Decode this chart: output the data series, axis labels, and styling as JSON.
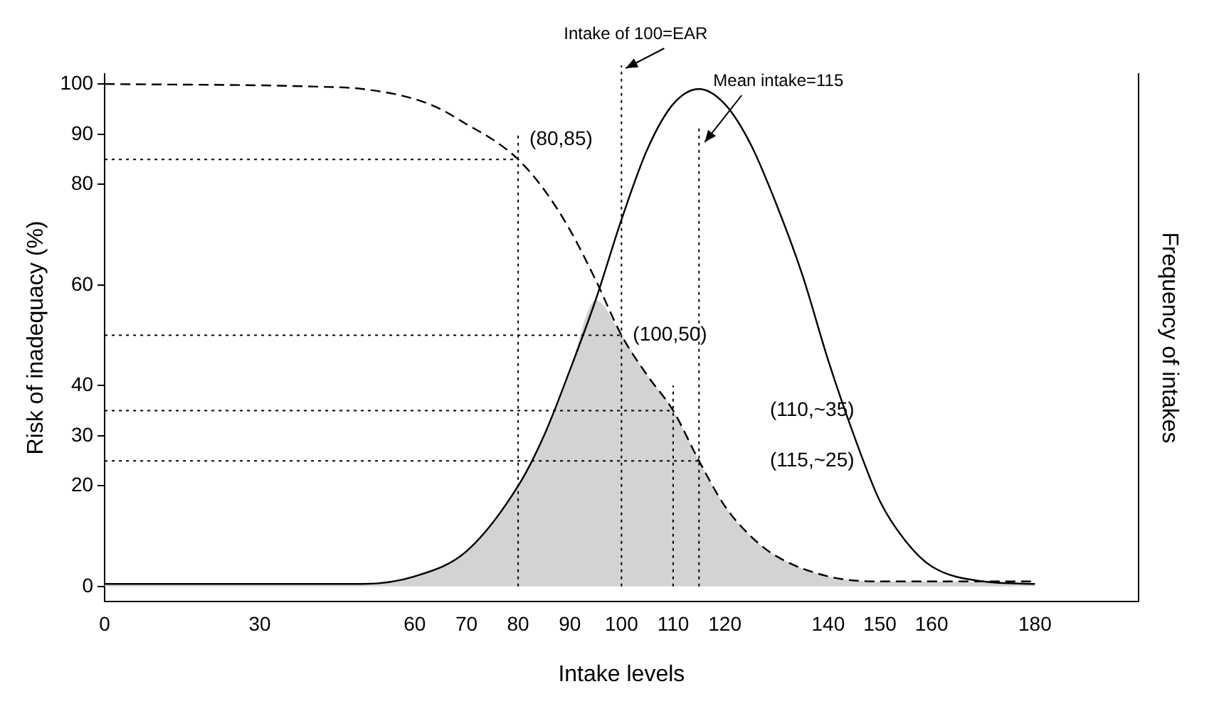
{
  "chart_data": {
    "type": "line",
    "xlabel": "Intake levels",
    "ylabel": "Risk of inadequacy (%)",
    "y2label": "Frequency of intakes",
    "xlim": [
      0,
      200
    ],
    "xticks": [
      0,
      30,
      60,
      70,
      80,
      90,
      100,
      110,
      120,
      140,
      150,
      160,
      180
    ],
    "ylim": [
      -3,
      102
    ],
    "yticks": [
      0,
      20,
      30,
      40,
      60,
      80,
      90,
      100
    ],
    "legend": false,
    "marker": "none",
    "series": [
      {
        "type": "area",
        "color": "#d3d3d3",
        "x": [
          0,
          50,
          60,
          70,
          80,
          85,
          90,
          95,
          100,
          105,
          110,
          115,
          120,
          125,
          130,
          140,
          150,
          160,
          180
        ],
        "values": [
          0.5,
          0.5,
          2,
          7,
          20,
          30,
          43,
          57,
          50,
          42,
          35,
          25,
          16,
          10,
          6,
          2,
          1,
          1,
          0.5
        ]
      },
      {
        "color": "#000000",
        "line_style": "dashed",
        "x": [
          0,
          40,
          50,
          60,
          65,
          70,
          75,
          80,
          85,
          90,
          95,
          100,
          105,
          110,
          115,
          120,
          125,
          130,
          140,
          150,
          160,
          180
        ],
        "values": [
          100,
          99.5,
          99,
          97,
          95,
          92,
          89,
          85,
          79,
          71,
          61,
          50,
          42,
          35,
          25,
          16,
          10,
          6,
          2,
          1,
          1,
          1
        ]
      },
      {
        "color": "#000000",
        "line_style": "solid",
        "x": [
          0,
          50,
          60,
          70,
          80,
          85,
          90,
          95,
          100,
          105,
          110,
          115,
          120,
          125,
          130,
          135,
          140,
          145,
          150,
          155,
          160,
          170,
          180
        ],
        "values": [
          0.5,
          0.5,
          2,
          7,
          20,
          30,
          43,
          57,
          73,
          87,
          96,
          99,
          96,
          88,
          76,
          62,
          45,
          30,
          17,
          9,
          4,
          1,
          0.5
        ]
      }
    ],
    "ref_lines": [
      {
        "axis": "x",
        "value": 80,
        "line_style": "dotted"
      },
      {
        "axis": "x",
        "value": 100,
        "label": "Intake of 100=EAR",
        "line_style": "dotted"
      },
      {
        "axis": "x",
        "value": 110,
        "line_style": "dotted"
      },
      {
        "axis": "x",
        "value": 115,
        "label": "Mean intake=115",
        "line_style": "dotted"
      },
      {
        "axis": "y",
        "value": 85,
        "line_style": "dotted"
      },
      {
        "axis": "y",
        "value": 50,
        "line_style": "dotted"
      },
      {
        "axis": "y",
        "value": 35,
        "line_style": "dotted"
      },
      {
        "axis": "y",
        "value": 25,
        "line_style": "dotted"
      }
    ],
    "annotations": [
      "(80,85)",
      "(100,50)",
      "(110,~35)",
      "(115,~25)"
    ]
  }
}
